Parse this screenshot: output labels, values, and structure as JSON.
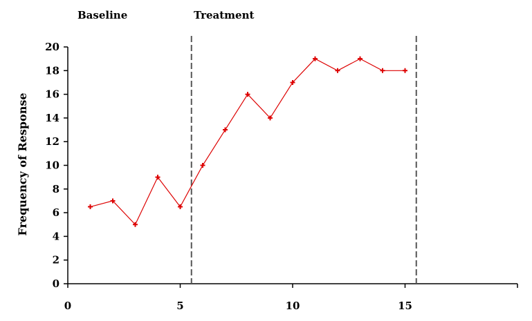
{
  "chart_data": {
    "type": "line",
    "title": "",
    "xlabel": "",
    "ylabel": "Frequency of Response",
    "xlim": [
      0,
      20
    ],
    "ylim": [
      0,
      20
    ],
    "x_ticks": [
      0,
      5,
      10,
      15
    ],
    "y_ticks": [
      0,
      2,
      4,
      6,
      8,
      10,
      12,
      14,
      16,
      18,
      20
    ],
    "phase_labels": [
      "Baseline",
      "Treatment"
    ],
    "phase_change_lines": [
      5.5,
      15.5
    ],
    "series": [
      {
        "color": "#dd0000",
        "x": [
          1,
          2,
          3,
          4,
          5,
          6,
          7,
          8,
          9,
          10,
          11,
          12,
          13,
          14,
          15
        ],
        "y": [
          6.5,
          7,
          5,
          9,
          6.5,
          10,
          13,
          16,
          14,
          17,
          19,
          18,
          19,
          18,
          18
        ]
      }
    ],
    "grid": false,
    "legend": "none"
  }
}
